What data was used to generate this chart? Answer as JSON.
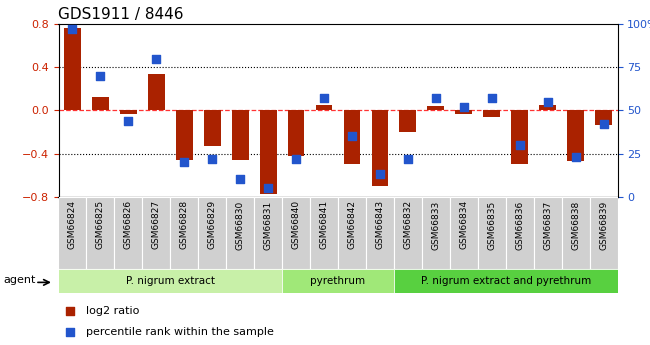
{
  "title": "GDS1911 / 8446",
  "samples": [
    "GSM66824",
    "GSM66825",
    "GSM66826",
    "GSM66827",
    "GSM66828",
    "GSM66829",
    "GSM66830",
    "GSM66831",
    "GSM66840",
    "GSM66841",
    "GSM66842",
    "GSM66843",
    "GSM66832",
    "GSM66833",
    "GSM66834",
    "GSM66835",
    "GSM66836",
    "GSM66837",
    "GSM66838",
    "GSM66839"
  ],
  "log2_ratio": [
    0.76,
    0.12,
    -0.03,
    0.34,
    -0.46,
    -0.33,
    -0.46,
    -0.78,
    -0.42,
    0.05,
    -0.5,
    -0.7,
    -0.2,
    0.04,
    -0.03,
    -0.06,
    -0.5,
    0.05,
    -0.47,
    -0.14
  ],
  "percentile_rank": [
    97,
    70,
    44,
    80,
    20,
    22,
    10,
    5,
    22,
    57,
    35,
    13,
    22,
    57,
    52,
    57,
    30,
    55,
    23,
    42
  ],
  "groups": [
    {
      "label": "P. nigrum extract",
      "start": 0,
      "end": 7,
      "color": "#c8f0a8"
    },
    {
      "label": "pyrethrum",
      "start": 8,
      "end": 11,
      "color": "#a0e878"
    },
    {
      "label": "P. nigrum extract and pyrethrum",
      "start": 12,
      "end": 19,
      "color": "#58d040"
    }
  ],
  "bar_color": "#aa2200",
  "dot_color": "#2255cc",
  "ylim_left": [
    -0.8,
    0.8
  ],
  "ylim_right": [
    0,
    100
  ],
  "yticks_left": [
    -0.8,
    -0.4,
    0.0,
    0.4,
    0.8
  ],
  "yticks_right": [
    0,
    25,
    50,
    75,
    100
  ],
  "ytick_labels_right": [
    "0",
    "25",
    "50",
    "75",
    "100%"
  ],
  "hline_dotted_vals": [
    -0.4,
    0.4
  ],
  "hline_red_val": 0.0,
  "agent_label": "agent",
  "legend_items": [
    "log2 ratio",
    "percentile rank within the sample"
  ],
  "xtick_bg_color": "#d0d0d0",
  "left_ytick_color": "#cc2200",
  "right_ytick_color": "#2255cc"
}
